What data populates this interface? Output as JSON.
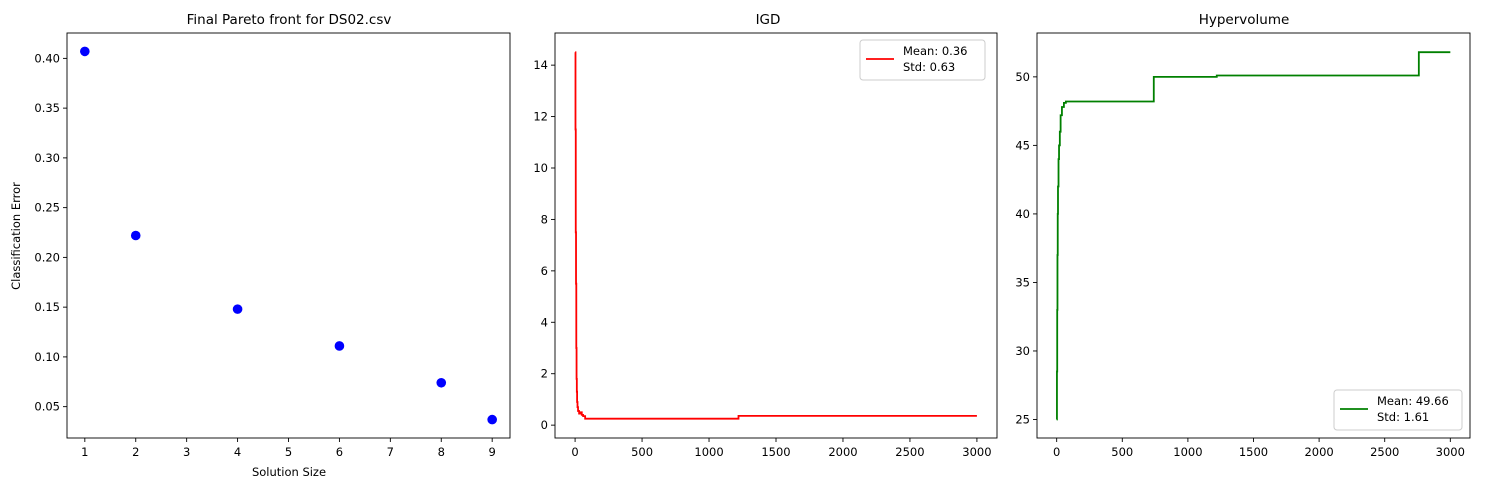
{
  "chart_data": [
    {
      "type": "scatter",
      "title": "Final Pareto front for DS02.csv",
      "xlabel": "Solution Size",
      "ylabel": "Classification Error",
      "xlim": [
        0.65,
        9.35
      ],
      "ylim": [
        0.0185,
        0.4255
      ],
      "xticks": [
        1,
        2,
        3,
        4,
        5,
        6,
        7,
        8,
        9
      ],
      "yticks": [
        0.05,
        0.1,
        0.15,
        0.2,
        0.25,
        0.3,
        0.35,
        0.4
      ],
      "ytick_labels": [
        "0.05",
        "0.10",
        "0.15",
        "0.20",
        "0.25",
        "0.30",
        "0.35",
        "0.40"
      ],
      "color": "#0000ff",
      "grid": false,
      "points": [
        {
          "x": 1,
          "y": 0.407
        },
        {
          "x": 2,
          "y": 0.222
        },
        {
          "x": 4,
          "y": 0.148
        },
        {
          "x": 6,
          "y": 0.111
        },
        {
          "x": 8,
          "y": 0.074
        },
        {
          "x": 9,
          "y": 0.037
        }
      ]
    },
    {
      "type": "line",
      "title": "IGD",
      "xlabel": "",
      "ylabel": "",
      "xlim": [
        -150,
        3150
      ],
      "ylim": [
        -0.5,
        15.25
      ],
      "xticks": [
        0,
        500,
        1000,
        1500,
        2000,
        2500,
        3000
      ],
      "yticks": [
        0,
        2,
        4,
        6,
        8,
        10,
        12,
        14
      ],
      "color": "#ff0000",
      "grid": false,
      "legend": {
        "position": "top-right",
        "lines": [
          "Mean: 0.36",
          "Std: 0.63"
        ]
      },
      "series": [
        {
          "step": true,
          "x": [
            0,
            3,
            5,
            7,
            9,
            11,
            13,
            15,
            18,
            22,
            30,
            40,
            50,
            60,
            75,
            1220,
            3000
          ],
          "y": [
            14.5,
            11.5,
            7.5,
            5.5,
            3.0,
            1.8,
            1.3,
            0.9,
            0.7,
            0.55,
            0.45,
            0.5,
            0.4,
            0.35,
            0.25,
            0.36,
            0.36
          ]
        }
      ]
    },
    {
      "type": "line",
      "title": "Hypervolume",
      "xlabel": "",
      "ylabel": "",
      "xlim": [
        -150,
        3150
      ],
      "ylim": [
        23.65,
        53.2
      ],
      "xticks": [
        0,
        500,
        1000,
        1500,
        2000,
        2500,
        3000
      ],
      "yticks": [
        25,
        30,
        35,
        40,
        45,
        50
      ],
      "color": "#008000",
      "grid": false,
      "legend": {
        "position": "bottom-right",
        "lines": [
          "Mean: 49.66",
          "Std: 1.61"
        ]
      },
      "series": [
        {
          "step": true,
          "x": [
            0,
            2,
            4,
            6,
            8,
            10,
            14,
            18,
            24,
            30,
            40,
            55,
            70,
            740,
            1220,
            2760,
            3000
          ],
          "y": [
            25.0,
            28.5,
            33.0,
            37.0,
            40.0,
            42.0,
            44.0,
            45.0,
            46.0,
            47.2,
            47.8,
            48.1,
            48.2,
            50.0,
            50.1,
            51.8,
            51.8
          ]
        }
      ]
    }
  ]
}
